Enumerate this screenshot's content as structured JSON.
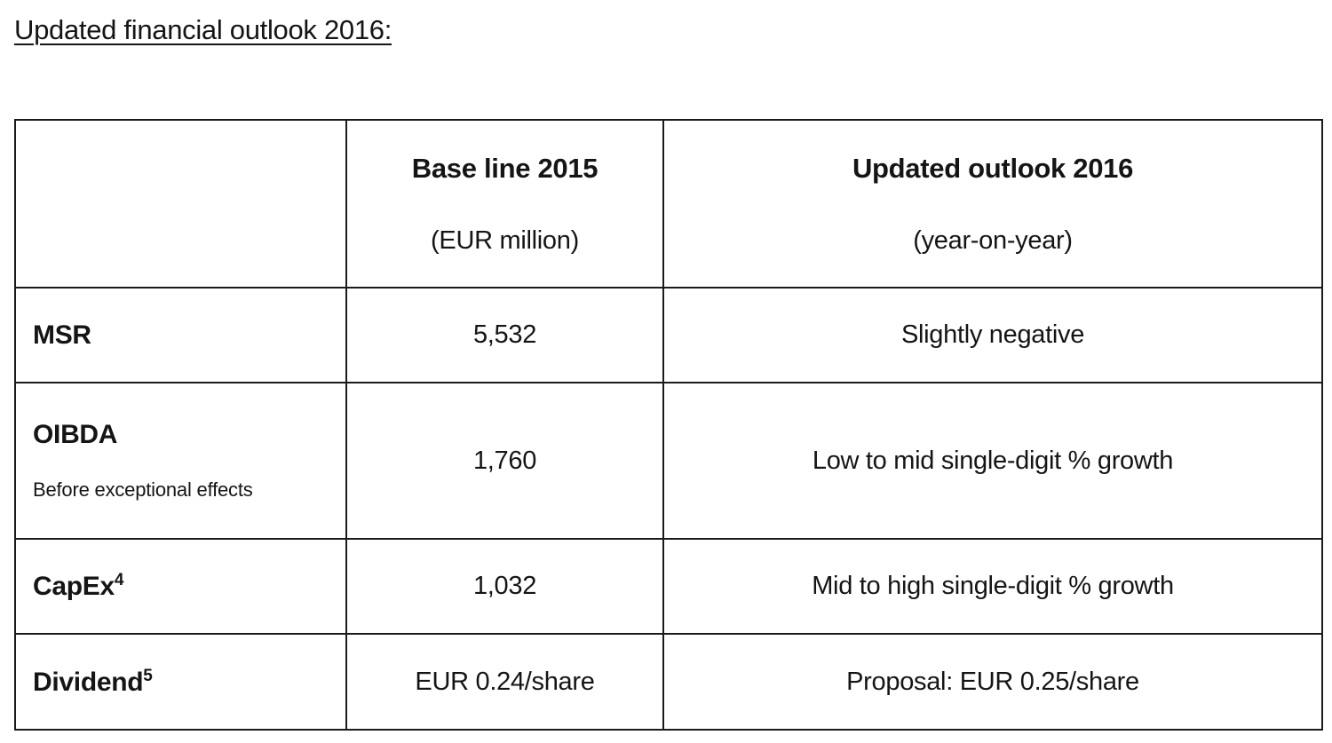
{
  "page_title": "Updated financial outlook 2016:",
  "colors": {
    "text": "#151515",
    "border": "#1b1b1b",
    "background": "#ffffff"
  },
  "table": {
    "header": {
      "col1": "",
      "col2": {
        "title": "Base line 2015",
        "subtitle": "(EUR million)"
      },
      "col3": {
        "title": "Updated outlook 2016",
        "subtitle": "(year-on-year)"
      }
    },
    "rows": [
      {
        "label": "MSR",
        "label_sup": "",
        "sublabel": "",
        "baseline": "5,532",
        "outlook": "Slightly negative"
      },
      {
        "label": "OIBDA",
        "label_sup": "",
        "sublabel": "Before exceptional effects",
        "baseline": "1,760",
        "outlook": "Low to mid single-digit % growth"
      },
      {
        "label": "CapEx",
        "label_sup": "4",
        "sublabel": "",
        "baseline": "1,032",
        "outlook": "Mid to high single-digit % growth"
      },
      {
        "label": "Dividend",
        "label_sup": "5",
        "sublabel": "",
        "baseline": "EUR 0.24/share",
        "outlook": "Proposal: EUR 0.25/share"
      }
    ]
  }
}
